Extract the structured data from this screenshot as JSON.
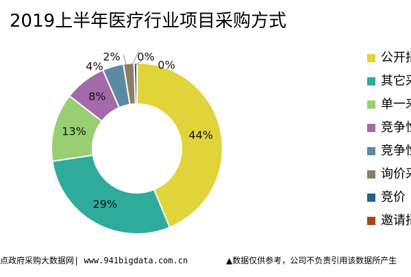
{
  "chart_data": {
    "type": "pie",
    "title": "2019上半年医疗行业项目采购方式",
    "categories": [
      "公开招标",
      "其它采购",
      "单一来源",
      "竞争性谈判",
      "竞争性磋商",
      "询价采购",
      "竞价",
      "邀请招标"
    ],
    "visible_legend_labels": [
      "公开招",
      "其它采",
      "单一来",
      "竞争性",
      "竞争性",
      "询价采",
      "竞价",
      "邀请招"
    ],
    "values": [
      44,
      29,
      13,
      8,
      4,
      2,
      0,
      0
    ],
    "value_labels": [
      "44%",
      "29%",
      "13%",
      "8%",
      "4%",
      "2%",
      "0%",
      "0%"
    ],
    "colors": [
      "#e0d43a",
      "#2fab9c",
      "#98cf72",
      "#a36aaa",
      "#5c8aa3",
      "#8b7e63",
      "#2a5e8c",
      "#a0471c"
    ],
    "donut": true,
    "legend_position": "right"
  },
  "footer": {
    "left": "点政府采购大数据网| www.941bigdata.com.cn",
    "right": "▲数据仅供参考，公司不负责引用该数据所产生"
  }
}
